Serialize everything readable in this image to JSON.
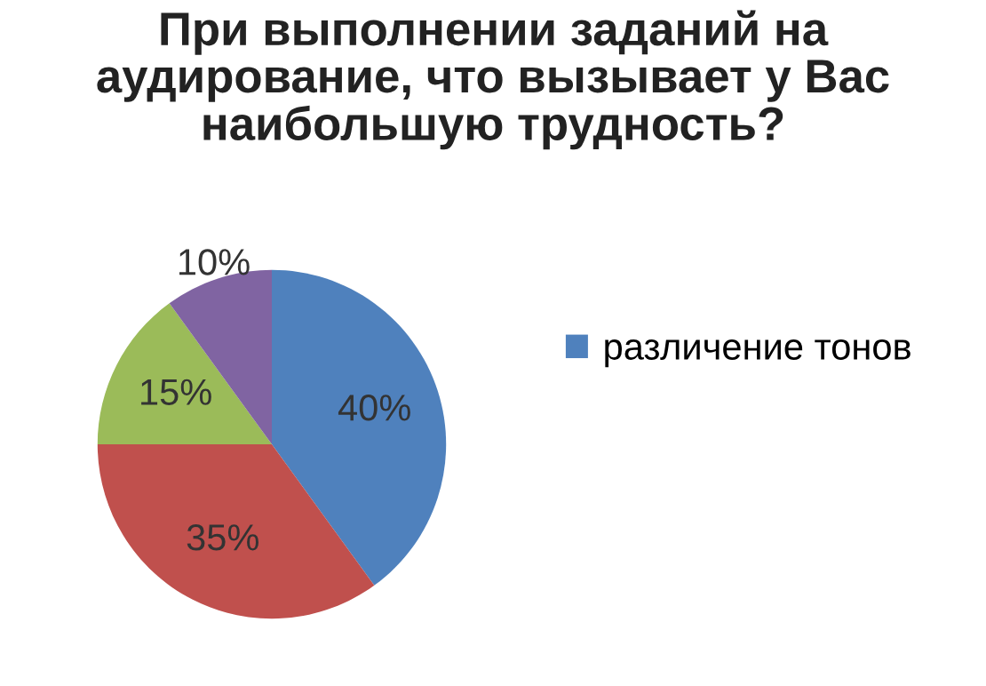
{
  "chart_data": {
    "type": "pie",
    "title": "При выполнении заданий на аудирование, что вызывает у Вас наибольшую трудность?",
    "categories": [
      "различение тонов",
      null,
      null,
      null
    ],
    "values": [
      40,
      35,
      15,
      10
    ],
    "colors": [
      "#4f81bd",
      "#c0504d",
      "#9bbb59",
      "#8064a2"
    ],
    "value_labels": [
      "40%",
      "35%",
      "15%",
      "10%"
    ],
    "legend": "right"
  }
}
